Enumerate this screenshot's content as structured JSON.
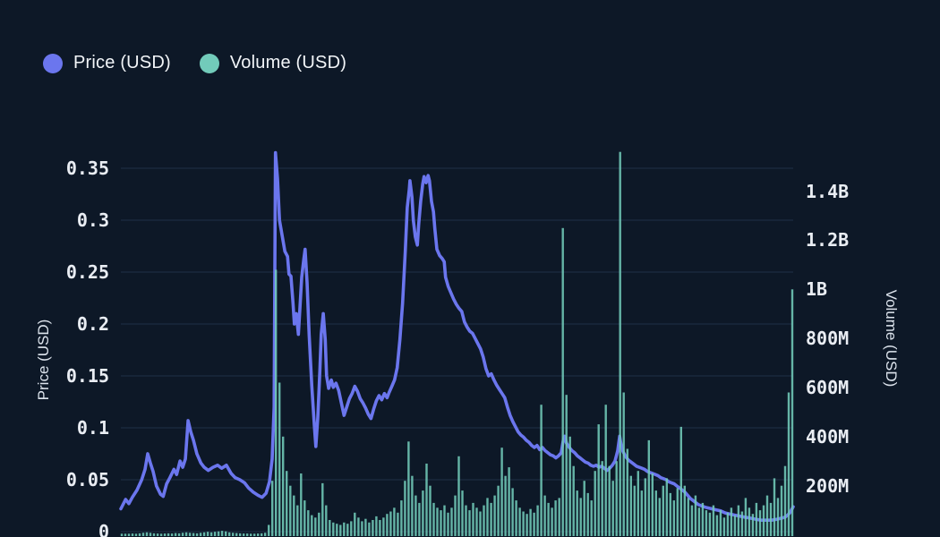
{
  "legend": {
    "items": [
      {
        "label": "Price (USD)"
      },
      {
        "label": "Volume (USD)"
      }
    ]
  },
  "theme": {
    "background": "#0d1827",
    "grid_color": "#1e2f47",
    "tick_text_color": "#e9edf3",
    "axis_title_color": "#dce3ec",
    "legend_text_color": "#f2f5f8"
  },
  "chart_data": {
    "type": "line+bar",
    "grid": "horizontal",
    "legend_position": "top-left",
    "x_axis_labels_visible": false,
    "left_axis": {
      "title": "Price (USD)",
      "ticks": [
        0,
        0.05,
        0.1,
        0.15,
        0.2,
        0.25,
        0.3,
        0.35
      ],
      "tick_labels": [
        "0",
        "0.05",
        "0.1",
        "0.15",
        "0.2",
        "0.25",
        "0.3",
        "0.35"
      ],
      "range": [
        0,
        0.38
      ]
    },
    "right_axis": {
      "title": "Volume (USD)",
      "ticks_millions": [
        200,
        400,
        600,
        800,
        1000,
        1200,
        1400
      ],
      "tick_labels": [
        "200M",
        "400M",
        "600M",
        "800M",
        "1B",
        "1.2B",
        "1.4B"
      ],
      "range_millions": [
        0,
        2180
      ]
    },
    "series": [
      {
        "name": "Price (USD)",
        "type": "line",
        "y_axis": "left",
        "color": "#6b76ee",
        "points": [
          [
            0.0,
            0.022
          ],
          [
            0.007,
            0.031
          ],
          [
            0.012,
            0.027
          ],
          [
            0.017,
            0.033
          ],
          [
            0.024,
            0.04
          ],
          [
            0.031,
            0.05
          ],
          [
            0.036,
            0.06
          ],
          [
            0.04,
            0.075
          ],
          [
            0.044,
            0.066
          ],
          [
            0.048,
            0.058
          ],
          [
            0.053,
            0.044
          ],
          [
            0.059,
            0.036
          ],
          [
            0.063,
            0.034
          ],
          [
            0.068,
            0.046
          ],
          [
            0.073,
            0.052
          ],
          [
            0.079,
            0.06
          ],
          [
            0.083,
            0.055
          ],
          [
            0.088,
            0.068
          ],
          [
            0.092,
            0.062
          ],
          [
            0.096,
            0.07
          ],
          [
            0.1,
            0.107
          ],
          [
            0.104,
            0.096
          ],
          [
            0.108,
            0.088
          ],
          [
            0.113,
            0.075
          ],
          [
            0.119,
            0.066
          ],
          [
            0.124,
            0.062
          ],
          [
            0.13,
            0.059
          ],
          [
            0.137,
            0.062
          ],
          [
            0.144,
            0.064
          ],
          [
            0.15,
            0.061
          ],
          [
            0.157,
            0.064
          ],
          [
            0.164,
            0.056
          ],
          [
            0.17,
            0.052
          ],
          [
            0.177,
            0.05
          ],
          [
            0.184,
            0.047
          ],
          [
            0.19,
            0.042
          ],
          [
            0.197,
            0.038
          ],
          [
            0.204,
            0.035
          ],
          [
            0.21,
            0.033
          ],
          [
            0.216,
            0.037
          ],
          [
            0.221,
            0.048
          ],
          [
            0.225,
            0.07
          ],
          [
            0.228,
            0.12
          ],
          [
            0.23,
            0.365
          ],
          [
            0.233,
            0.34
          ],
          [
            0.236,
            0.3
          ],
          [
            0.24,
            0.285
          ],
          [
            0.244,
            0.27
          ],
          [
            0.248,
            0.265
          ],
          [
            0.25,
            0.248
          ],
          [
            0.253,
            0.246
          ],
          [
            0.256,
            0.22
          ],
          [
            0.258,
            0.2
          ],
          [
            0.261,
            0.21
          ],
          [
            0.264,
            0.19
          ],
          [
            0.266,
            0.212
          ],
          [
            0.269,
            0.245
          ],
          [
            0.272,
            0.262
          ],
          [
            0.274,
            0.272
          ],
          [
            0.277,
            0.24
          ],
          [
            0.28,
            0.19
          ],
          [
            0.284,
            0.14
          ],
          [
            0.288,
            0.1
          ],
          [
            0.29,
            0.082
          ],
          [
            0.293,
            0.11
          ],
          [
            0.296,
            0.155
          ],
          [
            0.298,
            0.19
          ],
          [
            0.301,
            0.21
          ],
          [
            0.304,
            0.185
          ],
          [
            0.306,
            0.15
          ],
          [
            0.309,
            0.138
          ],
          [
            0.313,
            0.146
          ],
          [
            0.316,
            0.139
          ],
          [
            0.32,
            0.143
          ],
          [
            0.324,
            0.136
          ],
          [
            0.328,
            0.124
          ],
          [
            0.332,
            0.112
          ],
          [
            0.336,
            0.12
          ],
          [
            0.34,
            0.128
          ],
          [
            0.344,
            0.133
          ],
          [
            0.348,
            0.14
          ],
          [
            0.352,
            0.135
          ],
          [
            0.356,
            0.128
          ],
          [
            0.36,
            0.124
          ],
          [
            0.364,
            0.119
          ],
          [
            0.368,
            0.113
          ],
          [
            0.372,
            0.109
          ],
          [
            0.376,
            0.118
          ],
          [
            0.38,
            0.126
          ],
          [
            0.384,
            0.131
          ],
          [
            0.388,
            0.127
          ],
          [
            0.392,
            0.133
          ],
          [
            0.396,
            0.129
          ],
          [
            0.399,
            0.134
          ],
          [
            0.403,
            0.14
          ],
          [
            0.407,
            0.146
          ],
          [
            0.411,
            0.158
          ],
          [
            0.415,
            0.185
          ],
          [
            0.419,
            0.22
          ],
          [
            0.423,
            0.27
          ],
          [
            0.426,
            0.312
          ],
          [
            0.429,
            0.33
          ],
          [
            0.43,
            0.338
          ],
          [
            0.433,
            0.322
          ],
          [
            0.435,
            0.3
          ],
          [
            0.438,
            0.284
          ],
          [
            0.441,
            0.276
          ],
          [
            0.443,
            0.296
          ],
          [
            0.446,
            0.318
          ],
          [
            0.449,
            0.335
          ],
          [
            0.451,
            0.342
          ],
          [
            0.454,
            0.336
          ],
          [
            0.457,
            0.343
          ],
          [
            0.459,
            0.338
          ],
          [
            0.462,
            0.318
          ],
          [
            0.465,
            0.308
          ],
          [
            0.467,
            0.292
          ],
          [
            0.47,
            0.272
          ],
          [
            0.474,
            0.266
          ],
          [
            0.478,
            0.263
          ],
          [
            0.481,
            0.26
          ],
          [
            0.483,
            0.245
          ],
          [
            0.487,
            0.236
          ],
          [
            0.491,
            0.23
          ],
          [
            0.495,
            0.224
          ],
          [
            0.499,
            0.219
          ],
          [
            0.503,
            0.215
          ],
          [
            0.507,
            0.212
          ],
          [
            0.511,
            0.202
          ],
          [
            0.515,
            0.197
          ],
          [
            0.519,
            0.193
          ],
          [
            0.523,
            0.191
          ],
          [
            0.527,
            0.186
          ],
          [
            0.531,
            0.181
          ],
          [
            0.535,
            0.176
          ],
          [
            0.539,
            0.168
          ],
          [
            0.543,
            0.157
          ],
          [
            0.547,
            0.15
          ],
          [
            0.551,
            0.152
          ],
          [
            0.555,
            0.146
          ],
          [
            0.559,
            0.141
          ],
          [
            0.563,
            0.137
          ],
          [
            0.567,
            0.133
          ],
          [
            0.571,
            0.129
          ],
          [
            0.575,
            0.12
          ],
          [
            0.579,
            0.112
          ],
          [
            0.583,
            0.106
          ],
          [
            0.587,
            0.101
          ],
          [
            0.591,
            0.096
          ],
          [
            0.595,
            0.093
          ],
          [
            0.599,
            0.091
          ],
          [
            0.603,
            0.088
          ],
          [
            0.607,
            0.086
          ],
          [
            0.611,
            0.083
          ],
          [
            0.615,
            0.081
          ],
          [
            0.619,
            0.083
          ],
          [
            0.623,
            0.079
          ],
          [
            0.627,
            0.081
          ],
          [
            0.631,
            0.078
          ],
          [
            0.635,
            0.076
          ],
          [
            0.639,
            0.074
          ],
          [
            0.643,
            0.073
          ],
          [
            0.647,
            0.071
          ],
          [
            0.651,
            0.073
          ],
          [
            0.655,
            0.076
          ],
          [
            0.658,
            0.088
          ],
          [
            0.66,
            0.092
          ],
          [
            0.663,
            0.085
          ],
          [
            0.667,
            0.081
          ],
          [
            0.671,
            0.078
          ],
          [
            0.675,
            0.076
          ],
          [
            0.679,
            0.073
          ],
          [
            0.683,
            0.071
          ],
          [
            0.687,
            0.069
          ],
          [
            0.691,
            0.067
          ],
          [
            0.695,
            0.066
          ],
          [
            0.699,
            0.064
          ],
          [
            0.703,
            0.063
          ],
          [
            0.707,
            0.064
          ],
          [
            0.711,
            0.062
          ],
          [
            0.715,
            0.063
          ],
          [
            0.719,
            0.061
          ],
          [
            0.723,
            0.059
          ],
          [
            0.727,
            0.061
          ],
          [
            0.731,
            0.064
          ],
          [
            0.735,
            0.068
          ],
          [
            0.739,
            0.078
          ],
          [
            0.742,
            0.092
          ],
          [
            0.744,
            0.084
          ],
          [
            0.747,
            0.077
          ],
          [
            0.751,
            0.072
          ],
          [
            0.755,
            0.069
          ],
          [
            0.759,
            0.067
          ],
          [
            0.763,
            0.065
          ],
          [
            0.767,
            0.063
          ],
          [
            0.771,
            0.062
          ],
          [
            0.775,
            0.061
          ],
          [
            0.779,
            0.06
          ],
          [
            0.783,
            0.058
          ],
          [
            0.787,
            0.057
          ],
          [
            0.791,
            0.056
          ],
          [
            0.795,
            0.055
          ],
          [
            0.799,
            0.054
          ],
          [
            0.803,
            0.052
          ],
          [
            0.807,
            0.051
          ],
          [
            0.811,
            0.05
          ],
          [
            0.815,
            0.048
          ],
          [
            0.819,
            0.047
          ],
          [
            0.823,
            0.046
          ],
          [
            0.827,
            0.044
          ],
          [
            0.831,
            0.042
          ],
          [
            0.835,
            0.04
          ],
          [
            0.839,
            0.038
          ],
          [
            0.843,
            0.035
          ],
          [
            0.847,
            0.032
          ],
          [
            0.851,
            0.03
          ],
          [
            0.855,
            0.028
          ],
          [
            0.859,
            0.026
          ],
          [
            0.863,
            0.025
          ],
          [
            0.867,
            0.024
          ],
          [
            0.872,
            0.023
          ],
          [
            0.879,
            0.022
          ],
          [
            0.885,
            0.021
          ],
          [
            0.892,
            0.02
          ],
          [
            0.899,
            0.018
          ],
          [
            0.905,
            0.017
          ],
          [
            0.912,
            0.016
          ],
          [
            0.92,
            0.015
          ],
          [
            0.928,
            0.014
          ],
          [
            0.936,
            0.013
          ],
          [
            0.944,
            0.012
          ],
          [
            0.952,
            0.011
          ],
          [
            0.96,
            0.011
          ],
          [
            0.968,
            0.011
          ],
          [
            0.976,
            0.012
          ],
          [
            0.983,
            0.013
          ],
          [
            0.988,
            0.014
          ],
          [
            0.992,
            0.016
          ],
          [
            0.996,
            0.019
          ],
          [
            1.0,
            0.024
          ]
        ]
      },
      {
        "name": "Volume (USD)",
        "type": "bar",
        "y_axis": "right",
        "color": "#72cbba",
        "unit": "millions USD",
        "values": [
          3,
          4,
          3,
          5,
          4,
          6,
          8,
          10,
          8,
          6,
          5,
          4,
          5,
          6,
          5,
          7,
          6,
          8,
          10,
          8,
          7,
          6,
          8,
          10,
          12,
          10,
          12,
          14,
          16,
          14,
          10,
          8,
          7,
          6,
          5,
          5,
          4,
          4,
          5,
          6,
          8,
          40,
          220,
          1080,
          620,
          400,
          260,
          200,
          160,
          120,
          250,
          140,
          100,
          80,
          70,
          90,
          210,
          120,
          60,
          50,
          45,
          40,
          50,
          45,
          55,
          90,
          70,
          55,
          65,
          50,
          60,
          75,
          60,
          70,
          85,
          95,
          110,
          90,
          140,
          220,
          380,
          240,
          160,
          130,
          180,
          290,
          200,
          130,
          110,
          100,
          120,
          90,
          110,
          160,
          320,
          180,
          120,
          100,
          130,
          110,
          95,
          120,
          150,
          130,
          160,
          200,
          355,
          240,
          275,
          190,
          140,
          110,
          95,
          85,
          105,
          90,
          120,
          530,
          160,
          130,
          110,
          140,
          150,
          1250,
          570,
          400,
          280,
          180,
          150,
          220,
          170,
          140,
          260,
          450,
          300,
          530,
          280,
          220,
          300,
          1560,
          580,
          350,
          240,
          200,
          260,
          180,
          230,
          385,
          250,
          180,
          150,
          200,
          230,
          170,
          140,
          190,
          440,
          200,
          150,
          120,
          160,
          110,
          130,
          100,
          90,
          120,
          80,
          100,
          70,
          90,
          110,
          80,
          120,
          95,
          150,
          110,
          85,
          130,
          100,
          120,
          160,
          130,
          230,
          150,
          200,
          280,
          580,
          1000
        ]
      }
    ]
  }
}
